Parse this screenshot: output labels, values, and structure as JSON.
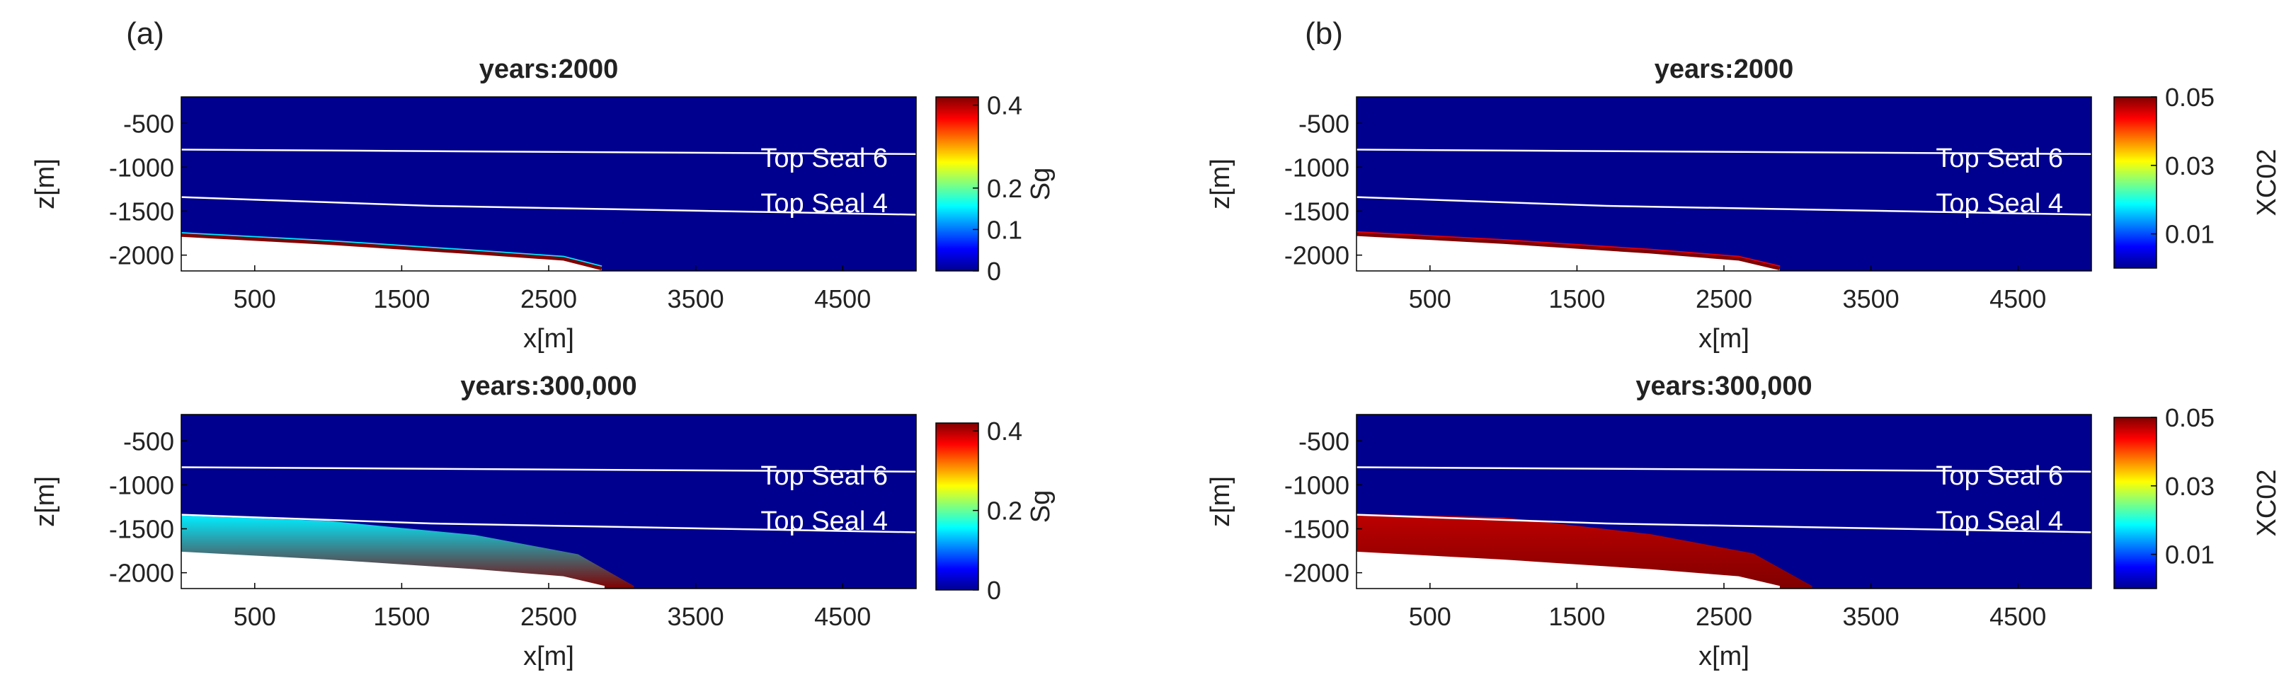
{
  "panel_labels": [
    "(a)",
    "(b)"
  ],
  "seal_labels": [
    "Top Seal 6",
    "Top Seal 4"
  ],
  "colors": {
    "background": "#00008f",
    "seal_line": "#ffffff",
    "frame": "#000000"
  },
  "colormap": "jet",
  "chart_data": [
    {
      "type": "heatmap",
      "panel": "(a)",
      "title": "years:2000",
      "xlabel": "x[m]",
      "ylabel": "z[m]",
      "xlim": [
        0,
        5000
      ],
      "ylim": [
        -2180,
        -200
      ],
      "xticks": [
        500,
        1500,
        2500,
        3500,
        4500
      ],
      "yticks": [
        -500,
        -1000,
        -1500,
        -2000
      ],
      "colorbar": {
        "label": "Sg",
        "range": [
          0,
          0.42
        ],
        "ticks": [
          0,
          0.1,
          0.2,
          0.4
        ]
      },
      "seals": [
        {
          "name": "Top Seal 6",
          "z": [
            [
              0,
              -800
            ],
            [
              5000,
              -850
            ]
          ]
        },
        {
          "name": "Top Seal 4",
          "z": [
            [
              0,
              -1340
            ],
            [
              1700,
              -1440
            ],
            [
              5000,
              -1540
            ]
          ]
        }
      ],
      "plume": {
        "top": [
          [
            0,
            -1770
          ],
          [
            1000,
            -1860
          ],
          [
            2000,
            -1970
          ],
          [
            2600,
            -2040
          ],
          [
            2860,
            -2150
          ]
        ],
        "value": 0.42,
        "rim_value": 0.15
      }
    },
    {
      "type": "heatmap",
      "panel": "(a)",
      "title": "years:300,000",
      "xlabel": "x[m]",
      "ylabel": "z[m]",
      "xlim": [
        0,
        5000
      ],
      "ylim": [
        -2180,
        -200
      ],
      "xticks": [
        500,
        1500,
        2500,
        3500,
        4500
      ],
      "yticks": [
        -500,
        -1000,
        -1500,
        -2000
      ],
      "colorbar": {
        "label": "Sg",
        "range": [
          0,
          0.42
        ],
        "ticks": [
          0,
          0.2,
          0.4
        ]
      },
      "seals": [
        {
          "name": "Top Seal 6",
          "z": [
            [
              0,
              -800
            ],
            [
              5000,
              -850
            ]
          ]
        },
        {
          "name": "Top Seal 4",
          "z": [
            [
              0,
              -1340
            ],
            [
              1700,
              -1440
            ],
            [
              5000,
              -1540
            ]
          ]
        }
      ],
      "plume": {
        "top": [
          [
            0,
            -1350
          ],
          [
            1000,
            -1410
          ],
          [
            2000,
            -1570
          ],
          [
            2700,
            -1790
          ],
          [
            3080,
            -2150
          ]
        ],
        "bottom": [
          [
            0,
            -1760
          ],
          [
            1000,
            -1850
          ],
          [
            2000,
            -1960
          ],
          [
            2600,
            -2040
          ],
          [
            2880,
            -2150
          ]
        ],
        "value_top": 0.15,
        "value_bottom": 0.42
      }
    },
    {
      "type": "heatmap",
      "panel": "(b)",
      "title": "years:2000",
      "xlabel": "x[m]",
      "ylabel": "z[m]",
      "xlim": [
        0,
        5000
      ],
      "ylim": [
        -2180,
        -200
      ],
      "xticks": [
        500,
        1500,
        2500,
        3500,
        4500
      ],
      "yticks": [
        -500,
        -1000,
        -1500,
        -2000
      ],
      "colorbar": {
        "label": "XC02",
        "range": [
          0,
          0.05
        ],
        "ticks": [
          0.01,
          0.03,
          0.05
        ]
      },
      "seals": [
        {
          "name": "Top Seal 6",
          "z": [
            [
              0,
              -800
            ],
            [
              5000,
              -850
            ]
          ]
        },
        {
          "name": "Top Seal 4",
          "z": [
            [
              0,
              -1340
            ],
            [
              1700,
              -1440
            ],
            [
              5000,
              -1540
            ]
          ]
        }
      ],
      "plume": {
        "top": [
          [
            0,
            -1760
          ],
          [
            1000,
            -1850
          ],
          [
            2000,
            -1960
          ],
          [
            2600,
            -2040
          ],
          [
            2880,
            -2150
          ]
        ],
        "value": 0.05,
        "rim_value": 0.045
      }
    },
    {
      "type": "heatmap",
      "panel": "(b)",
      "title": "years:300,000",
      "xlabel": "x[m]",
      "ylabel": "z[m]",
      "xlim": [
        0,
        5000
      ],
      "ylim": [
        -2180,
        -200
      ],
      "xticks": [
        500,
        1500,
        2500,
        3500,
        4500
      ],
      "yticks": [
        -500,
        -1000,
        -1500,
        -2000
      ],
      "colorbar": {
        "label": "XC02",
        "range": [
          0,
          0.05
        ],
        "ticks": [
          0.01,
          0.03,
          0.05
        ]
      },
      "seals": [
        {
          "name": "Top Seal 6",
          "z": [
            [
              0,
              -800
            ],
            [
              5000,
              -850
            ]
          ]
        },
        {
          "name": "Top Seal 4",
          "z": [
            [
              0,
              -1340
            ],
            [
              1700,
              -1440
            ],
            [
              5000,
              -1540
            ]
          ]
        }
      ],
      "plume": {
        "top": [
          [
            0,
            -1330
          ],
          [
            1000,
            -1370
          ],
          [
            2000,
            -1560
          ],
          [
            2700,
            -1780
          ],
          [
            3100,
            -2150
          ]
        ],
        "bottom": [
          [
            0,
            -1760
          ],
          [
            1000,
            -1850
          ],
          [
            2000,
            -1960
          ],
          [
            2600,
            -2040
          ],
          [
            2880,
            -2150
          ]
        ],
        "value_top": 0.047,
        "value_bottom": 0.05
      }
    }
  ]
}
